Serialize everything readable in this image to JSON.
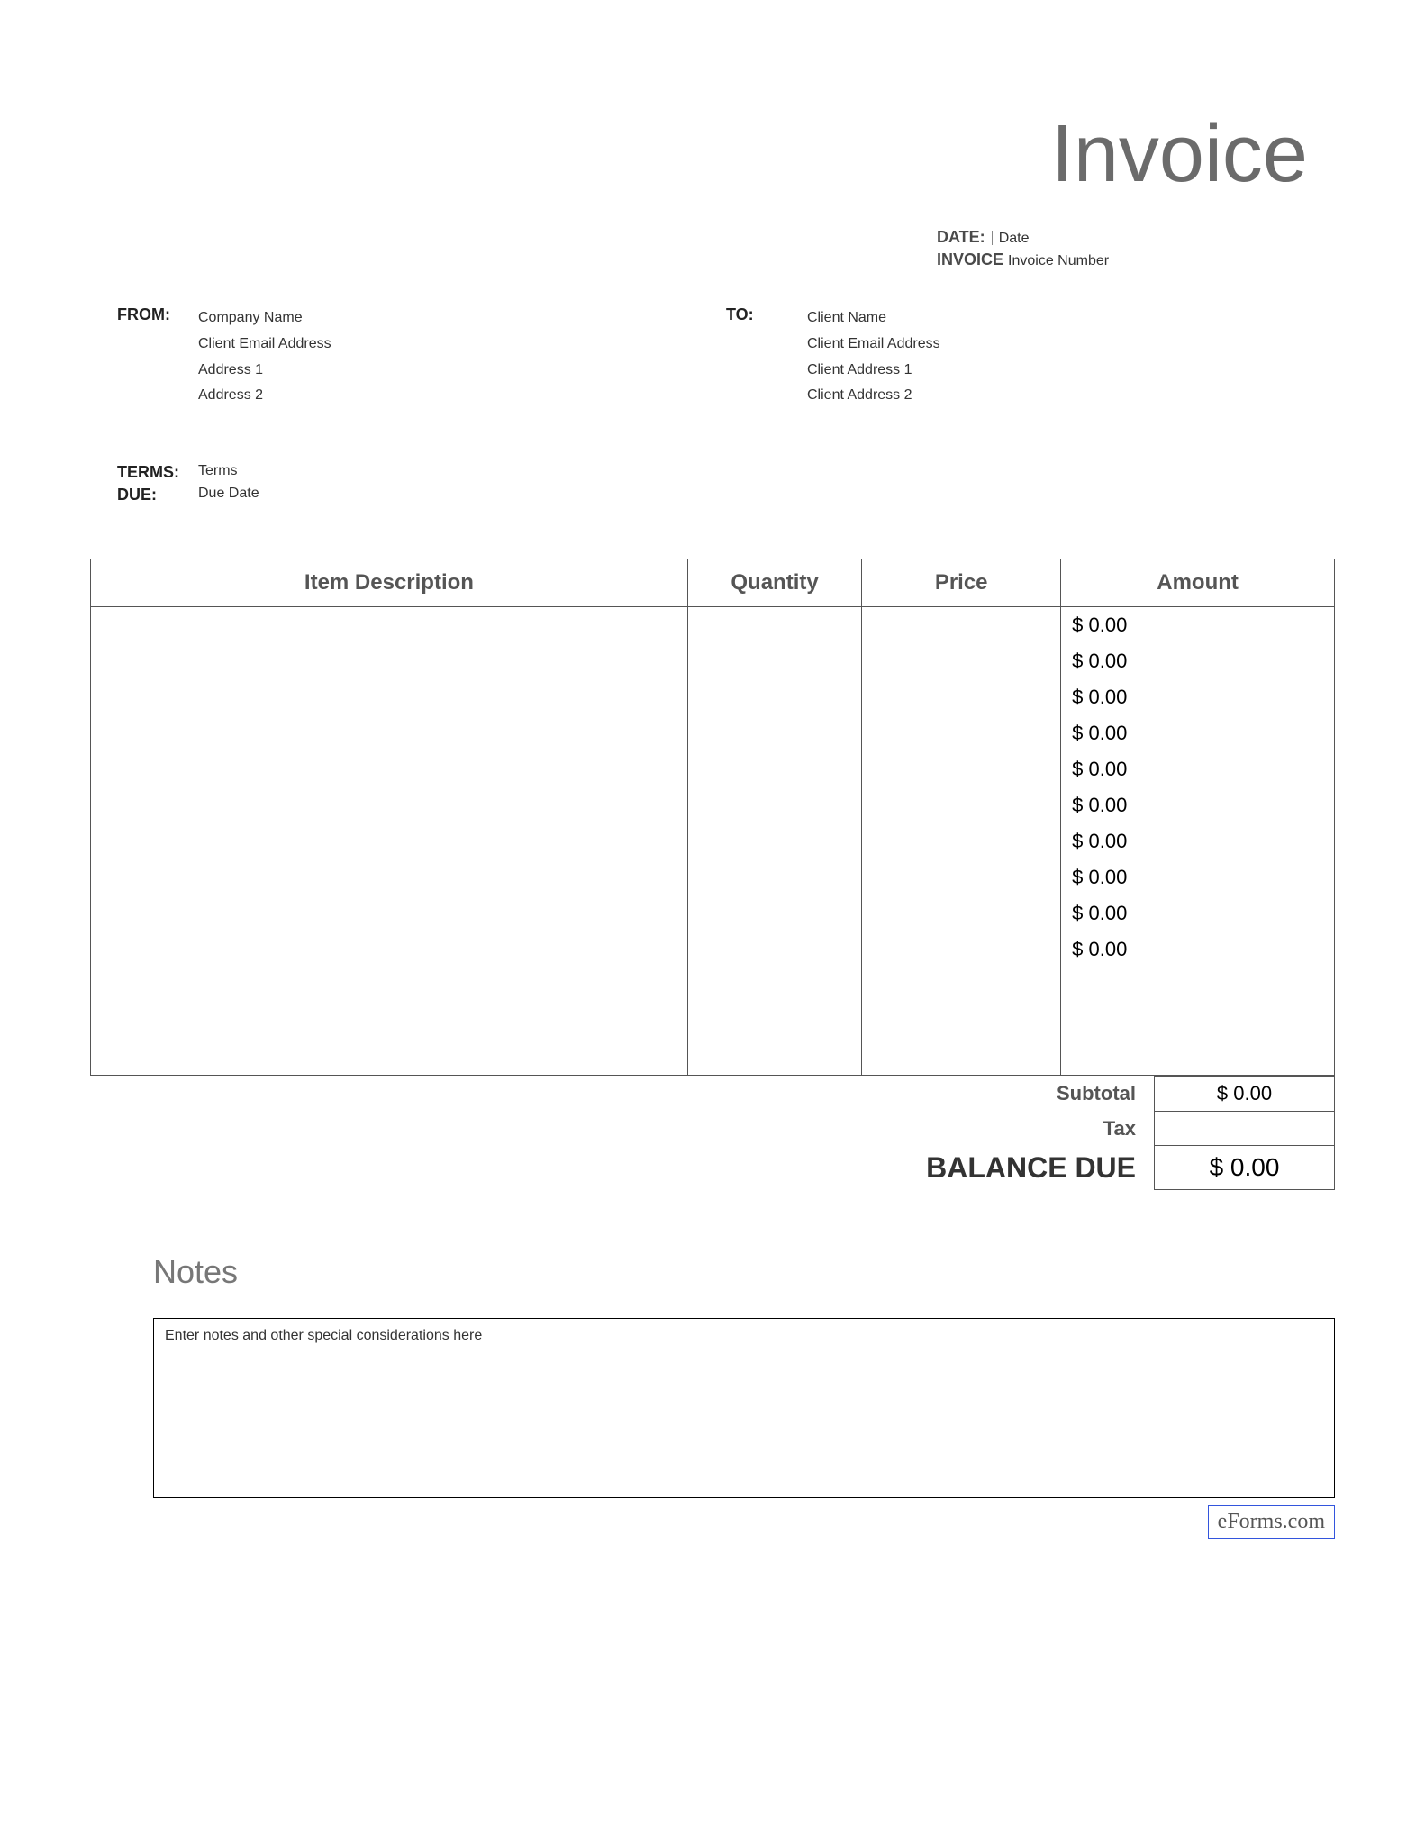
{
  "title": "Invoice",
  "meta": {
    "date_label": "DATE:",
    "date_value": "Date",
    "invoice_label": "INVOICE",
    "invoice_value": "Invoice Number"
  },
  "from": {
    "label": "FROM:",
    "lines": [
      "Company Name",
      "Client Email Address",
      "Address 1",
      "Address 2"
    ]
  },
  "to": {
    "label": "TO:",
    "lines": [
      "Client Name",
      "Client Email Address",
      "Client Address 1",
      "Client Address 2"
    ]
  },
  "terms": {
    "terms_label": "TERMS:",
    "terms_value": "Terms",
    "due_label": "DUE:",
    "due_value": "Due Date"
  },
  "table": {
    "columns": [
      "Item Description",
      "Quantity",
      "Price",
      "Amount"
    ],
    "rows": [
      {
        "desc": "",
        "qty": "",
        "price": "",
        "amount": "$ 0.00"
      },
      {
        "desc": "",
        "qty": "",
        "price": "",
        "amount": "$ 0.00"
      },
      {
        "desc": "",
        "qty": "",
        "price": "",
        "amount": "$ 0.00"
      },
      {
        "desc": "",
        "qty": "",
        "price": "",
        "amount": "$ 0.00"
      },
      {
        "desc": "",
        "qty": "",
        "price": "",
        "amount": "$ 0.00"
      },
      {
        "desc": "",
        "qty": "",
        "price": "",
        "amount": "$ 0.00"
      },
      {
        "desc": "",
        "qty": "",
        "price": "",
        "amount": "$ 0.00"
      },
      {
        "desc": "",
        "qty": "",
        "price": "",
        "amount": "$ 0.00"
      },
      {
        "desc": "",
        "qty": "",
        "price": "",
        "amount": "$ 0.00"
      },
      {
        "desc": "",
        "qty": "",
        "price": "",
        "amount": "$ 0.00"
      },
      {
        "desc": "",
        "qty": "",
        "price": "",
        "amount": ""
      },
      {
        "desc": "",
        "qty": "",
        "price": "",
        "amount": ""
      },
      {
        "desc": "",
        "qty": "",
        "price": "",
        "amount": ""
      }
    ]
  },
  "totals": {
    "subtotal_label": "Subtotal",
    "subtotal_value": "$ 0.00",
    "tax_label": "Tax",
    "tax_value": "",
    "balance_label": "BALANCE DUE",
    "balance_value": "$ 0.00"
  },
  "notes": {
    "heading": "Notes",
    "placeholder": "Enter notes and other special considerations here"
  },
  "footer": {
    "brand": "eForms.com"
  },
  "style": {
    "title_color": "#6b6b6b",
    "header_color": "#555555",
    "border_color": "#555555",
    "text_color": "#000000",
    "muted_color": "#333333",
    "background": "#ffffff",
    "brand_border": "#3355dd",
    "title_fontsize": 90,
    "header_fontsize": 24,
    "body_fontsize": 22
  }
}
